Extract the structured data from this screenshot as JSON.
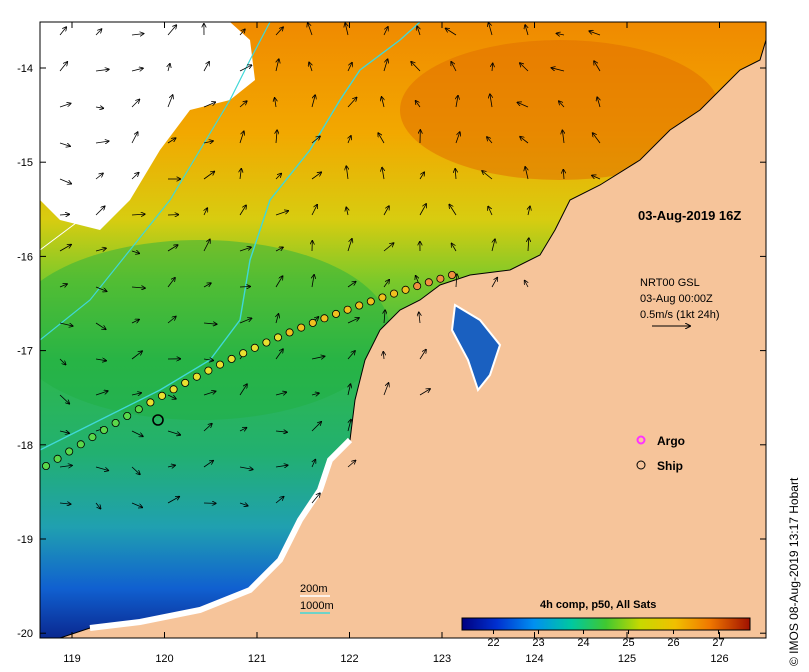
{
  "map": {
    "timestamp": "03-Aug-2019 16Z",
    "current_product": "NRT00 GSL",
    "current_date": "03-Aug 00:00Z",
    "arrow_scale": "0.5m/s (1kt 24h)",
    "credit": "© IMOS 08-Aug-2019 13:17 Hobart",
    "land_color": "#f6c49a",
    "cloud_color": "#ffffff",
    "isobath_color": "#40d8d8",
    "lon_ticks": [
      "119",
      "120",
      "121",
      "122",
      "123",
      "124",
      "125",
      "126"
    ],
    "lat_ticks": [
      "-14",
      "-15",
      "-16",
      "-17",
      "-18",
      "-19",
      "-20"
    ]
  },
  "legend": {
    "argo_label": "Argo",
    "ship_label": "Ship",
    "argo_color": "#ff33ff",
    "ship_color": "#000000"
  },
  "depth_legend": {
    "label_200": "200m",
    "label_1000": "1000m"
  },
  "colorbar": {
    "title": "4h comp, p50, All Sats",
    "ticks": [
      "22",
      "23",
      "24",
      "25",
      "26",
      "27"
    ],
    "min": 21.3,
    "max": 27.7
  }
}
